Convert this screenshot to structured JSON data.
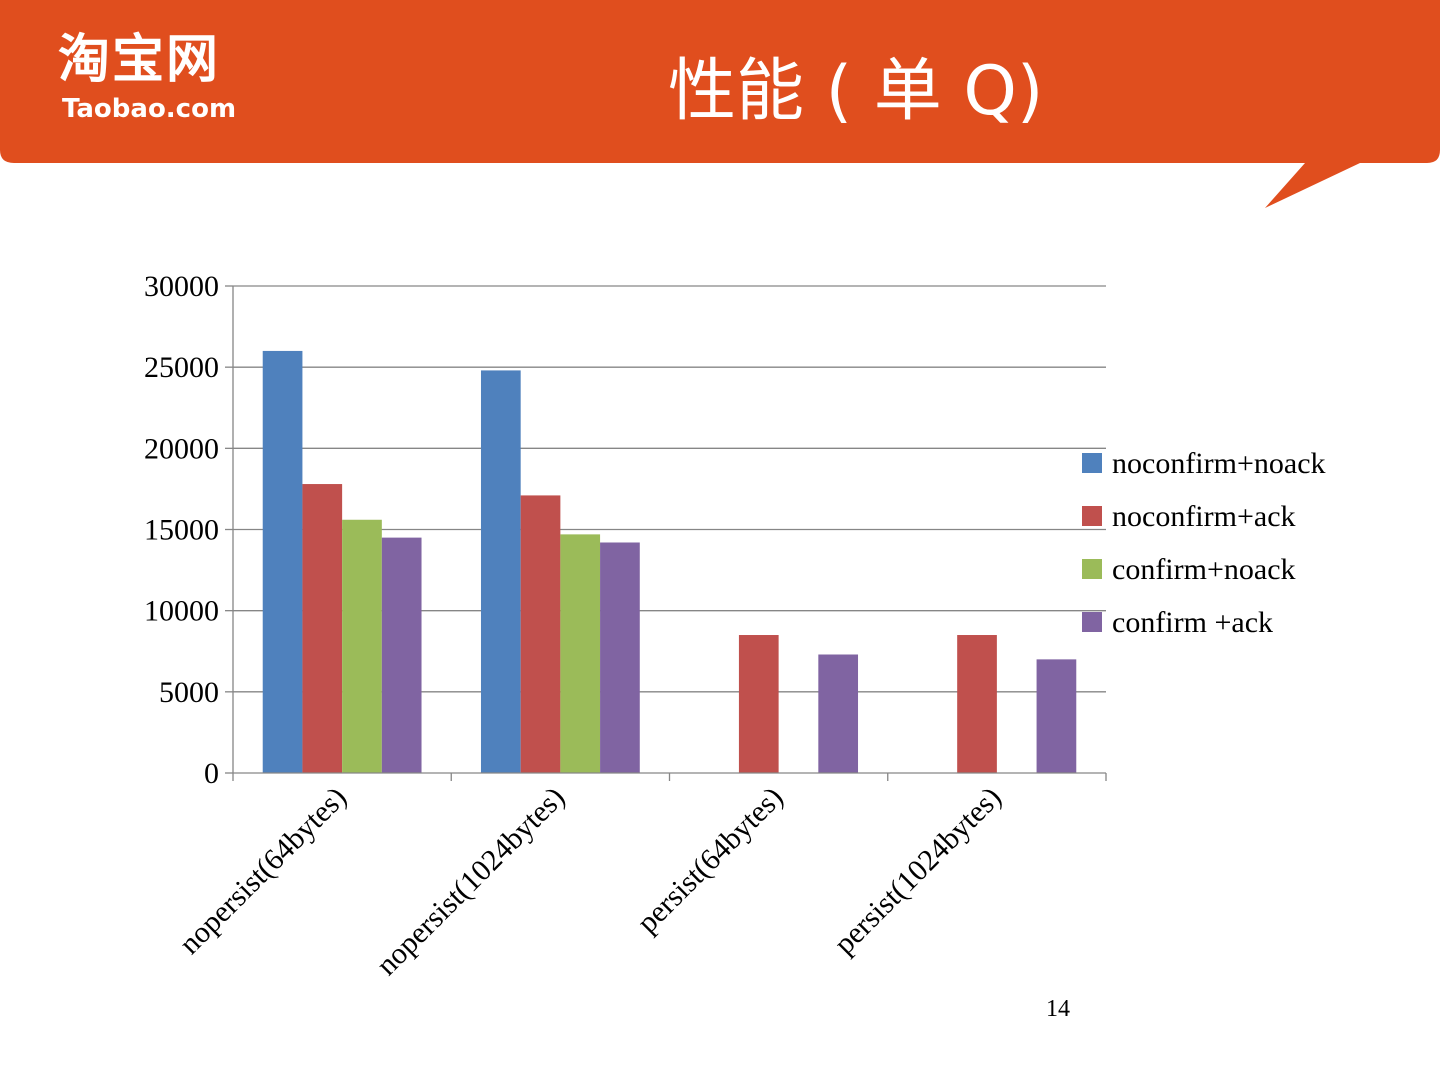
{
  "header": {
    "logo_cn": "淘宝网",
    "logo_en": "Taobao.com",
    "title": "性能 ( 单 Q)",
    "banner_color": "#E04E1E"
  },
  "page_number": "14",
  "chart_data": {
    "type": "bar",
    "title": "",
    "xlabel": "",
    "ylabel": "",
    "ylim": [
      0,
      30000
    ],
    "yticks": [
      0,
      5000,
      10000,
      15000,
      20000,
      25000,
      30000
    ],
    "grid": true,
    "legend_position": "right",
    "categories": [
      "nopersist(64bytes)",
      "nopersist(1024bytes)",
      "persist(64bytes)",
      "persist(1024bytes)"
    ],
    "series": [
      {
        "name": "noconfirm+noack",
        "color": "#4F81BD",
        "values": [
          26000,
          24800,
          null,
          null
        ]
      },
      {
        "name": "noconfirm+ack",
        "color": "#C0504D",
        "values": [
          17800,
          17100,
          8500,
          8500
        ]
      },
      {
        "name": "confirm+noack",
        "color": "#9BBB59",
        "values": [
          15600,
          14700,
          null,
          null
        ]
      },
      {
        "name": "confirm +ack",
        "color": "#8064A2",
        "values": [
          14500,
          14200,
          7300,
          7000
        ]
      }
    ]
  }
}
